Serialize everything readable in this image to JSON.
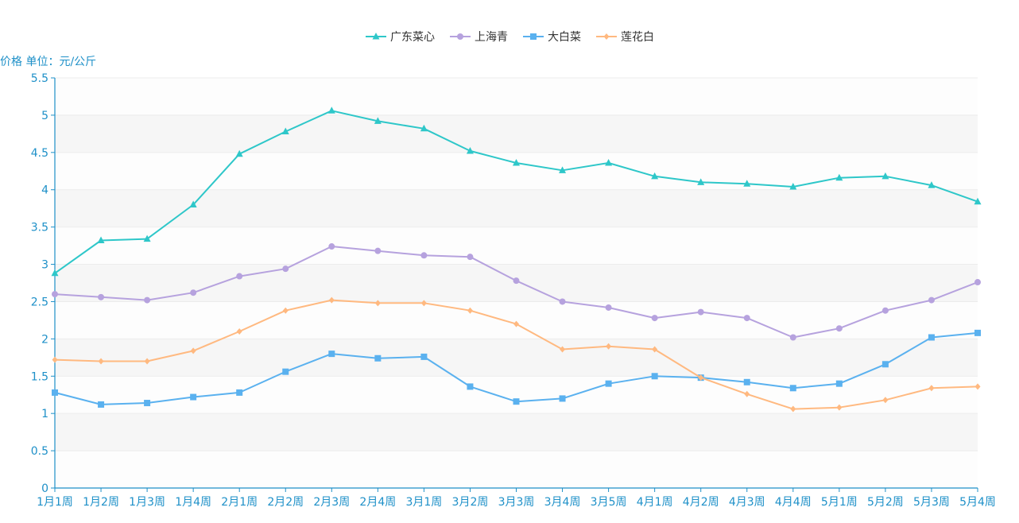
{
  "chart_data": {
    "type": "line",
    "ylabel": "价格 单位：元/公斤",
    "categories": [
      "1月1周",
      "1月2周",
      "1月3周",
      "1月4周",
      "2月1周",
      "2月2周",
      "2月3周",
      "2月4周",
      "3月1周",
      "3月2周",
      "3月3周",
      "3月4周",
      "3月5周",
      "4月1周",
      "4月2周",
      "4月3周",
      "4月4周",
      "5月1周",
      "5月2周",
      "5月3周",
      "5月4周"
    ],
    "ylim": [
      0,
      5.5
    ],
    "yticks": [
      "0",
      "0.5",
      "1",
      "1.5",
      "2",
      "2.5",
      "3",
      "3.5",
      "4",
      "4.5",
      "5",
      "5.5"
    ],
    "grid": true,
    "legend_position": "top-center",
    "series": [
      {
        "name": "广东菜心",
        "color": "#2ec7c9",
        "marker": "triangle",
        "values": [
          2.88,
          3.32,
          3.34,
          3.8,
          4.48,
          4.78,
          5.06,
          4.92,
          4.82,
          4.52,
          4.36,
          4.26,
          4.36,
          4.18,
          4.1,
          4.08,
          4.04,
          4.16,
          4.18,
          4.06,
          3.84
        ]
      },
      {
        "name": "上海青",
        "color": "#b6a2de",
        "marker": "circle",
        "values": [
          2.6,
          2.56,
          2.52,
          2.62,
          2.84,
          2.94,
          3.24,
          3.18,
          3.12,
          3.1,
          2.78,
          2.5,
          2.42,
          2.28,
          2.36,
          2.28,
          2.02,
          2.14,
          2.38,
          2.52,
          2.76
        ]
      },
      {
        "name": "大白菜",
        "color": "#5ab1ef",
        "marker": "square",
        "values": [
          1.28,
          1.12,
          1.14,
          1.22,
          1.28,
          1.56,
          1.8,
          1.74,
          1.76,
          1.36,
          1.16,
          1.2,
          1.4,
          1.5,
          1.48,
          1.42,
          1.34,
          1.4,
          1.66,
          2.02,
          2.08
        ]
      },
      {
        "name": "莲花白",
        "color": "#ffb980",
        "marker": "diamond",
        "values": [
          1.72,
          1.7,
          1.7,
          1.84,
          2.1,
          2.38,
          2.52,
          2.48,
          2.48,
          2.38,
          2.2,
          1.86,
          1.9,
          1.86,
          1.48,
          1.26,
          1.06,
          1.08,
          1.18,
          1.34,
          1.36
        ]
      }
    ]
  }
}
